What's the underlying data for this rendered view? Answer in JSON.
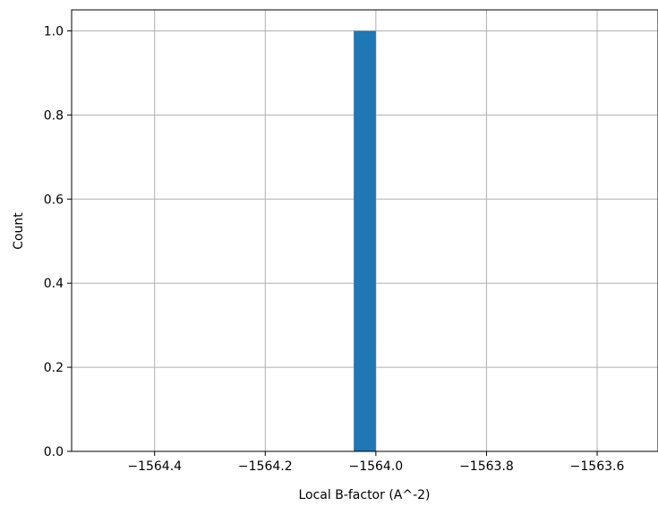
{
  "chart_data": {
    "type": "bar",
    "title": "",
    "xlabel": "Local B-factor (A^-2)",
    "ylabel": "Count",
    "xlim": [
      -1564.55,
      -1563.49
    ],
    "ylim": [
      0,
      1.05
    ],
    "xticks": [
      -1564.4,
      -1564.2,
      -1564.0,
      -1563.8,
      -1563.6
    ],
    "xtick_labels": [
      "−1564.4",
      "−1564.2",
      "−1564.0",
      "−1563.8",
      "−1563.6"
    ],
    "yticks": [
      0.0,
      0.2,
      0.4,
      0.6,
      0.8,
      1.0
    ],
    "ytick_labels": [
      "0.0",
      "0.2",
      "0.4",
      "0.6",
      "0.8",
      "1.0"
    ],
    "grid": true,
    "bars": [
      {
        "x_start": -1564.04,
        "x_end": -1564.0,
        "value": 1
      }
    ],
    "colors": {
      "bar": "#1f77b4",
      "grid": "#b0b0b0",
      "axis": "#000000"
    }
  }
}
